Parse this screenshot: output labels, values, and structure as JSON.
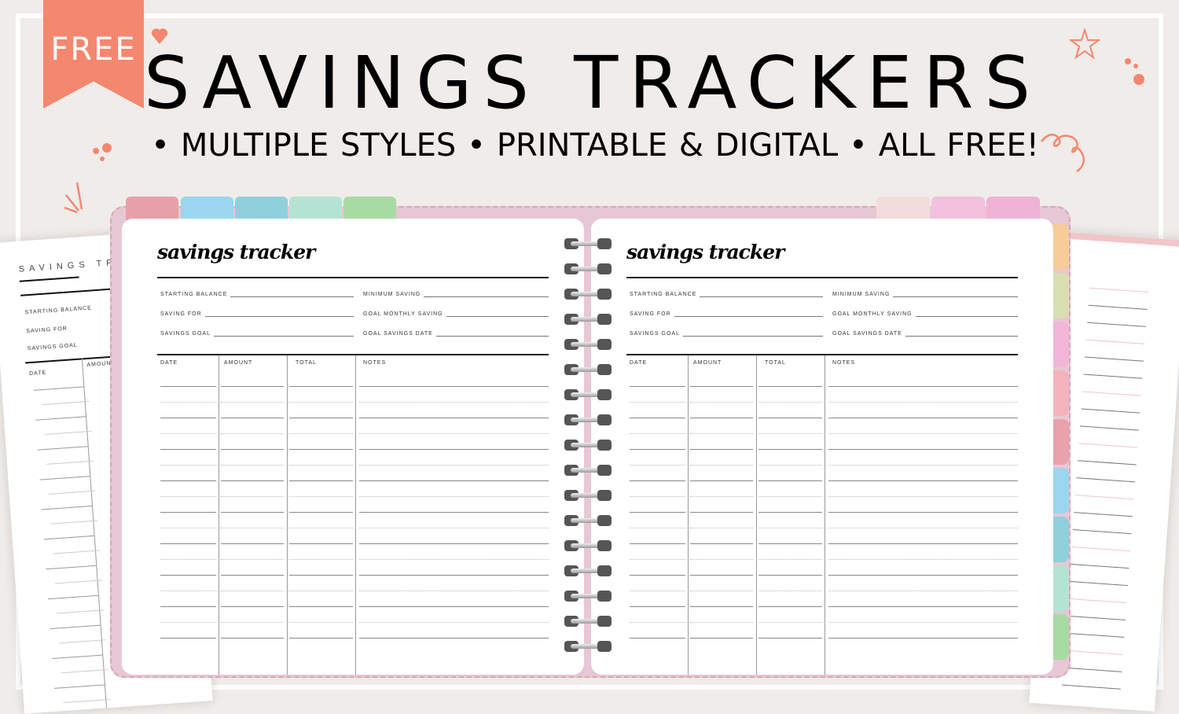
{
  "banner": {
    "label": "FREE",
    "color": "#f4876f"
  },
  "title": "SAVINGS TRACKERS",
  "subtitle": [
    "MULTIPLE STYLES",
    "PRINTABLE & DIGITAL",
    "ALL FREE!"
  ],
  "bullet": "•",
  "left_sheet": {
    "heading": "SAVINGS TRACKER",
    "fields": [
      "STARTING BALANCE",
      "SAVING FOR",
      "SAVINGS GOAL"
    ],
    "columns": [
      "DATE",
      "AMOUNT"
    ]
  },
  "planner": {
    "top_tabs_left": [
      "#e8a0a8",
      "#9ad6ee",
      "#8fd0dc",
      "#b5e3d3",
      "#a8dba3"
    ],
    "top_tabs_right": [
      "#f3dcdc",
      "#f1c1dd",
      "#eeb3d5"
    ],
    "side_tabs": [
      "#f6cc98",
      "#d8dfb0",
      "#f1b5d8",
      "#f2b3bd",
      "#e7a2ac",
      "#9ad6ee",
      "#8fd0dc",
      "#b5e3d3",
      "#a8dba3"
    ],
    "pages": [
      {
        "title": "savings tracker",
        "fields_left": [
          "STARTING BALANCE",
          "SAVING FOR",
          "SAVINGS GOAL"
        ],
        "fields_right": [
          "MINIMUM SAVING",
          "GOAL MONTHLY SAVING",
          "GOAL SAVINGS DATE"
        ],
        "columns": [
          "DATE",
          "AMOUNT",
          "TOTAL",
          "NOTES"
        ]
      },
      {
        "title": "savings tracker",
        "fields_left": [
          "STARTING BALANCE",
          "SAVING FOR",
          "SAVINGS GOAL"
        ],
        "fields_right": [
          "MINIMUM SAVING",
          "GOAL MONTHLY SAVING",
          "GOAL SAVINGS DATE"
        ],
        "columns": [
          "DATE",
          "AMOUNT",
          "TOTAL",
          "NOTES"
        ]
      }
    ]
  }
}
